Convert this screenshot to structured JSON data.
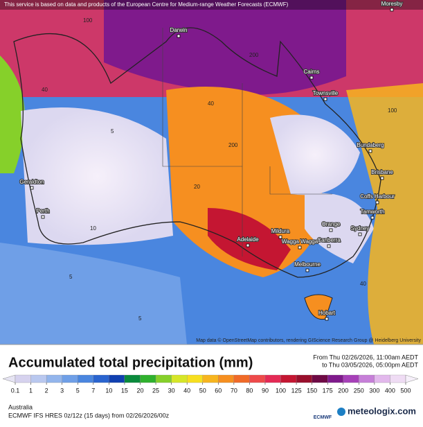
{
  "notice": "This service is based on data and products of the European Centre for Medium-range Weather Forecasts (ECMWF)",
  "cities": [
    "Moresby",
    "Darwin",
    "Cairns",
    "Townsville",
    "Bundaberg",
    "Brisbane",
    "Coffs Harbour",
    "Tamworth",
    "Orange",
    "Sydney",
    "Canberra",
    "Wagga Wagga",
    "Mildura",
    "Adelaide",
    "Melbourne",
    "Hobart",
    "Geraldton",
    "Perth"
  ],
  "contour_labels": [
    "100",
    "200",
    "40",
    "5",
    "40",
    "20",
    "10",
    "5",
    "40",
    "200",
    "100",
    "5"
  ],
  "attribution": "Map data © OpenStreetMap contributors, rendering GIScience Research Group @ Heidelberg University",
  "title": "Accumulated total precipitation (mm)",
  "period_from": "From Thu 02/26/2026, 11:00am AEDT",
  "period_to": "to Thu 03/05/2026, 05:00pm AEDT",
  "legend": {
    "levels": [
      0.1,
      1,
      2,
      3,
      5,
      7,
      10,
      15,
      20,
      25,
      30,
      40,
      50,
      60,
      70,
      80,
      90,
      100,
      125,
      150,
      175,
      200,
      250,
      300,
      400,
      500
    ],
    "colors": [
      "#e6e4f3",
      "#d6d2ee",
      "#b9c8ef",
      "#93b5ec",
      "#6f9fe7",
      "#4a86df",
      "#2a64cf",
      "#1040b0",
      "#0a8a3c",
      "#2fb12e",
      "#86d02a",
      "#d6e628",
      "#f7df1f",
      "#f7b51f",
      "#f68f20",
      "#f06a28",
      "#ee4a4a",
      "#e42a55",
      "#c41632",
      "#990f2c",
      "#6e0a45",
      "#7f1a8c",
      "#a640b8",
      "#c67fd8",
      "#e2b8ec",
      "#efdcf4",
      "#f6f0fa"
    ]
  },
  "region": "Australia",
  "model_info": "ECMWF IFS HRES 0z/12z (15 days) from 02/26/2026/00z",
  "ecmwf_logo": "ECMWF",
  "brand": "meteologix.com"
}
